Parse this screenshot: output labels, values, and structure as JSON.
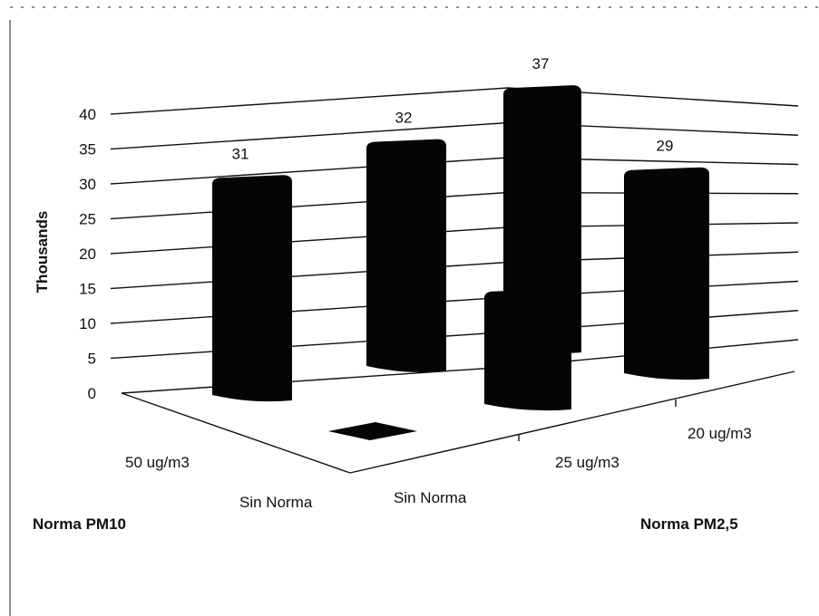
{
  "chart_data": {
    "type": "bar",
    "ylabel": "Thousands",
    "ylim": [
      0,
      40
    ],
    "yticks": [
      "0",
      "5",
      "10",
      "15",
      "20",
      "25",
      "30",
      "35",
      "40"
    ],
    "depth_axis_label": "Norma PM10",
    "depth_categories": [
      "50 ug/m3",
      "Sin Norma"
    ],
    "x_axis_label": "Norma PM2,5",
    "x_categories": [
      "Sin Norma",
      "25 ug/m3",
      "20 ug/m3"
    ],
    "bars": [
      {
        "pm10": "50 ug/m3",
        "pm25": "Sin Norma",
        "value": 31,
        "label": "31"
      },
      {
        "pm10": "50 ug/m3",
        "pm25": "25 ug/m3",
        "value": 32,
        "label": "32"
      },
      {
        "pm10": "50 ug/m3",
        "pm25": "25 ug/m3",
        "value": 37,
        "label": "37"
      },
      {
        "pm10": "50 ug/m3",
        "pm25": "20 ug/m3",
        "value": 29,
        "label": "29"
      },
      {
        "pm10": "Sin Norma",
        "pm25": "Sin Norma",
        "value": 0,
        "label": ""
      },
      {
        "pm10": "Sin Norma",
        "pm25": "25 ug/m3",
        "value": 16,
        "label": ""
      }
    ],
    "grid": true
  }
}
